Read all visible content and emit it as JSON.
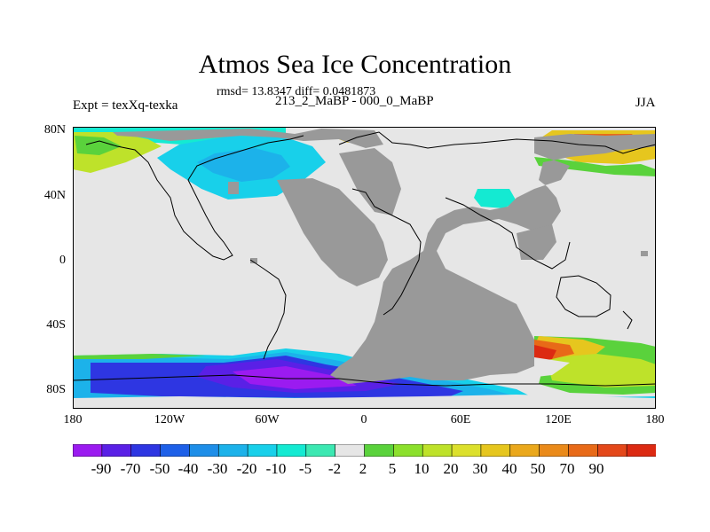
{
  "title": "Atmos Sea Ice Concentration",
  "stats": "rmsd= 13.8347 diff= 0.0481873",
  "experiment": "Expt = texXq-texka",
  "period": "213_2_MaBP - 000_0_MaBP",
  "season": "JJA",
  "map": {
    "projection": "cylindrical equidistant",
    "lon_range": [
      -180,
      180
    ],
    "lat_range": [
      -90,
      90
    ],
    "lat_tick_labels": [
      "80N",
      "40N",
      "0",
      "40S",
      "80S"
    ],
    "lon_tick_labels": [
      "180",
      "120W",
      "60W",
      "0",
      "60E",
      "120E",
      "180"
    ],
    "land_color": "#999999",
    "zero_change_color": "#e6e6e6",
    "coastline_color": "#000000"
  },
  "colorbar": {
    "colors": [
      "#9b1bf0",
      "#5a20e6",
      "#2e36e2",
      "#1e60e8",
      "#1e8ee8",
      "#1cb2ea",
      "#18d0ea",
      "#14ead2",
      "#3ce8b2",
      "#e6e6e6",
      "#5ad23c",
      "#8ce02c",
      "#bee22a",
      "#dce02c",
      "#e6c61e",
      "#eaa81c",
      "#ea8a1a",
      "#e86a18",
      "#e4481a",
      "#dc2a12"
    ],
    "labels": [
      "-90",
      "-70",
      "-50",
      "-40",
      "-30",
      "-20",
      "-10",
      "-5",
      "-2",
      "2",
      "5",
      "10",
      "20",
      "30",
      "40",
      "50",
      "70",
      "90"
    ]
  }
}
